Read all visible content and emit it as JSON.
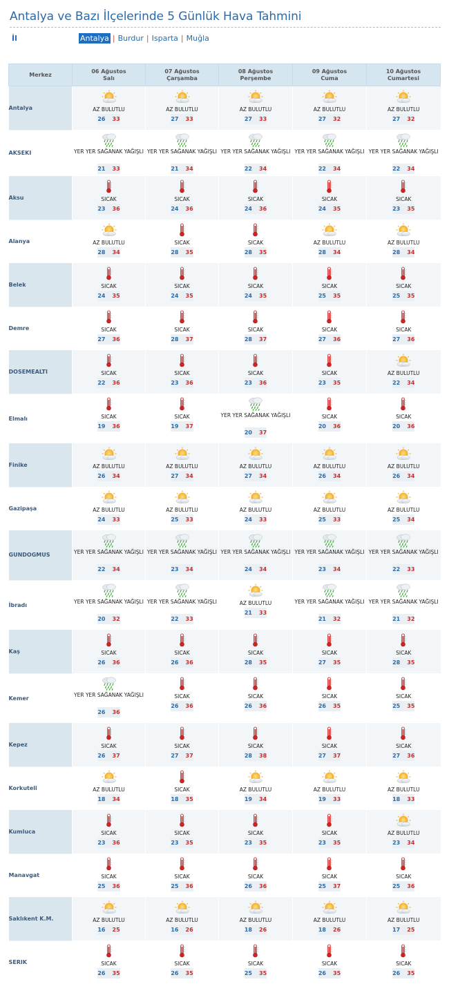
{
  "page": {
    "title": "Antalya ve Bazı İlçelerinde 5 Günlük Hava Tahmini",
    "il_label": "İl",
    "provinces": [
      {
        "label": "Antalya",
        "active": true
      },
      {
        "label": "Burdur",
        "active": false
      },
      {
        "label": "Isparta",
        "active": false
      },
      {
        "label": "Muğla",
        "active": false
      }
    ]
  },
  "table": {
    "merkez_label": "Merkez",
    "days": [
      {
        "date": "06 Ağustos",
        "weekday": "Salı"
      },
      {
        "date": "07 Ağustos",
        "weekday": "Çarşamba"
      },
      {
        "date": "08 Ağustos",
        "weekday": "Perşembe"
      },
      {
        "date": "09 Ağustos",
        "weekday": "Cuma"
      },
      {
        "date": "10 Ağustos",
        "weekday": "Cumartesi"
      }
    ],
    "conditions": {
      "AB": {
        "label": "AZ BULUTLU",
        "icon": "partly-cloudy-icon"
      },
      "S": {
        "label": "SICAK",
        "icon": "thermometer-icon"
      },
      "Y": {
        "label": "YER YER SAĞANAK YAĞIŞLI",
        "icon": "shower-icon"
      }
    },
    "rows": [
      {
        "city": "Antalya",
        "days": [
          [
            "AB",
            "26",
            "33"
          ],
          [
            "AB",
            "27",
            "33"
          ],
          [
            "AB",
            "27",
            "33"
          ],
          [
            "AB",
            "27",
            "32"
          ],
          [
            "AB",
            "27",
            "32"
          ]
        ]
      },
      {
        "city": "AKSEKI",
        "days": [
          [
            "Y",
            "21",
            "33"
          ],
          [
            "Y",
            "21",
            "34"
          ],
          [
            "Y",
            "22",
            "34"
          ],
          [
            "Y",
            "22",
            "34"
          ],
          [
            "Y",
            "22",
            "34"
          ]
        ]
      },
      {
        "city": "Aksu",
        "days": [
          [
            "S",
            "23",
            "36"
          ],
          [
            "S",
            "24",
            "36"
          ],
          [
            "S",
            "24",
            "36"
          ],
          [
            "S",
            "24",
            "35"
          ],
          [
            "S",
            "23",
            "35"
          ]
        ]
      },
      {
        "city": "Alanya",
        "days": [
          [
            "AB",
            "28",
            "34"
          ],
          [
            "S",
            "28",
            "35"
          ],
          [
            "S",
            "28",
            "35"
          ],
          [
            "AB",
            "28",
            "34"
          ],
          [
            "AB",
            "28",
            "34"
          ]
        ]
      },
      {
        "city": "Belek",
        "days": [
          [
            "S",
            "24",
            "35"
          ],
          [
            "S",
            "24",
            "35"
          ],
          [
            "S",
            "24",
            "35"
          ],
          [
            "S",
            "25",
            "35"
          ],
          [
            "S",
            "25",
            "35"
          ]
        ]
      },
      {
        "city": "Demre",
        "days": [
          [
            "S",
            "27",
            "36"
          ],
          [
            "S",
            "28",
            "37"
          ],
          [
            "S",
            "28",
            "37"
          ],
          [
            "S",
            "27",
            "36"
          ],
          [
            "S",
            "27",
            "36"
          ]
        ]
      },
      {
        "city": "DOSEMEALTI",
        "days": [
          [
            "S",
            "22",
            "36"
          ],
          [
            "S",
            "23",
            "36"
          ],
          [
            "S",
            "23",
            "36"
          ],
          [
            "S",
            "23",
            "35"
          ],
          [
            "AB",
            "22",
            "34"
          ]
        ]
      },
      {
        "city": "Elmalı",
        "days": [
          [
            "S",
            "19",
            "36"
          ],
          [
            "S",
            "19",
            "37"
          ],
          [
            "Y",
            "20",
            "37"
          ],
          [
            "S",
            "20",
            "36"
          ],
          [
            "S",
            "20",
            "36"
          ]
        ]
      },
      {
        "city": "Finike",
        "days": [
          [
            "AB",
            "26",
            "34"
          ],
          [
            "AB",
            "27",
            "34"
          ],
          [
            "AB",
            "27",
            "34"
          ],
          [
            "AB",
            "26",
            "34"
          ],
          [
            "AB",
            "26",
            "34"
          ]
        ]
      },
      {
        "city": "Gazipaşa",
        "days": [
          [
            "AB",
            "24",
            "33"
          ],
          [
            "AB",
            "25",
            "33"
          ],
          [
            "AB",
            "24",
            "33"
          ],
          [
            "AB",
            "25",
            "33"
          ],
          [
            "AB",
            "25",
            "34"
          ]
        ]
      },
      {
        "city": "GUNDOGMUS",
        "days": [
          [
            "Y",
            "22",
            "34"
          ],
          [
            "Y",
            "23",
            "34"
          ],
          [
            "Y",
            "24",
            "34"
          ],
          [
            "Y",
            "23",
            "34"
          ],
          [
            "Y",
            "22",
            "33"
          ]
        ]
      },
      {
        "city": "İbradı",
        "days": [
          [
            "Y",
            "20",
            "32"
          ],
          [
            "Y",
            "22",
            "33"
          ],
          [
            "AB",
            "21",
            "33"
          ],
          [
            "Y",
            "21",
            "32"
          ],
          [
            "Y",
            "21",
            "32"
          ]
        ]
      },
      {
        "city": "Kaş",
        "days": [
          [
            "S",
            "26",
            "36"
          ],
          [
            "S",
            "26",
            "36"
          ],
          [
            "S",
            "28",
            "35"
          ],
          [
            "S",
            "27",
            "35"
          ],
          [
            "S",
            "28",
            "35"
          ]
        ]
      },
      {
        "city": "Kemer",
        "days": [
          [
            "Y",
            "26",
            "36"
          ],
          [
            "S",
            "26",
            "36"
          ],
          [
            "S",
            "26",
            "36"
          ],
          [
            "S",
            "26",
            "35"
          ],
          [
            "S",
            "25",
            "35"
          ]
        ]
      },
      {
        "city": "Kepez",
        "days": [
          [
            "S",
            "26",
            "37"
          ],
          [
            "S",
            "27",
            "37"
          ],
          [
            "S",
            "28",
            "38"
          ],
          [
            "S",
            "27",
            "37"
          ],
          [
            "S",
            "27",
            "36"
          ]
        ]
      },
      {
        "city": "Korkuteli",
        "days": [
          [
            "AB",
            "18",
            "34"
          ],
          [
            "S",
            "18",
            "35"
          ],
          [
            "AB",
            "19",
            "34"
          ],
          [
            "AB",
            "19",
            "33"
          ],
          [
            "AB",
            "18",
            "33"
          ]
        ]
      },
      {
        "city": "Kumluca",
        "days": [
          [
            "S",
            "23",
            "36"
          ],
          [
            "S",
            "23",
            "35"
          ],
          [
            "S",
            "23",
            "35"
          ],
          [
            "S",
            "23",
            "35"
          ],
          [
            "AB",
            "23",
            "34"
          ]
        ]
      },
      {
        "city": "Manavgat",
        "days": [
          [
            "S",
            "25",
            "36"
          ],
          [
            "S",
            "25",
            "36"
          ],
          [
            "S",
            "26",
            "36"
          ],
          [
            "S",
            "25",
            "37"
          ],
          [
            "S",
            "25",
            "36"
          ]
        ]
      },
      {
        "city": "Saklıkent K.M.",
        "days": [
          [
            "AB",
            "16",
            "25"
          ],
          [
            "AB",
            "16",
            "26"
          ],
          [
            "AB",
            "18",
            "26"
          ],
          [
            "AB",
            "18",
            "26"
          ],
          [
            "AB",
            "17",
            "25"
          ]
        ]
      },
      {
        "city": "SERIK",
        "days": [
          [
            "S",
            "26",
            "35"
          ],
          [
            "S",
            "26",
            "35"
          ],
          [
            "S",
            "25",
            "35"
          ],
          [
            "S",
            "26",
            "35"
          ],
          [
            "S",
            "26",
            "35"
          ]
        ]
      }
    ]
  }
}
